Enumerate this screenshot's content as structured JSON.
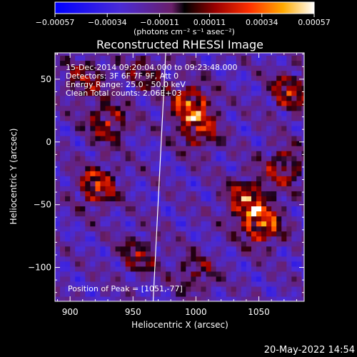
{
  "chart_data": {
    "type": "heatmap",
    "title": "Reconstructed RHESSI Image",
    "xlabel": "Heliocentric X (arcsec)",
    "ylabel": "Heliocentric Y (arcsec)",
    "xlim": [
      888,
      1086
    ],
    "ylim": [
      -127,
      71
    ],
    "x_ticks": [
      900,
      950,
      1000,
      1050
    ],
    "y_ticks": [
      50,
      0,
      -50,
      -100
    ],
    "x_tick_labels": [
      "900",
      "950",
      "1000",
      "1050"
    ],
    "y_tick_labels": [
      "50",
      "0",
      "−50",
      "−100"
    ],
    "colorbar": {
      "range": [
        -0.00057,
        0.00057
      ],
      "ticks": [
        -0.00057,
        -0.00034,
        -0.00011,
        0.00011,
        0.00034,
        0.00057
      ],
      "tick_labels": [
        "−0.00057",
        "−0.00034",
        "−0.00011",
        "0.00011",
        "0.00034",
        "0.00057"
      ],
      "units": "(photons cm⁻² s⁻¹ asec⁻²)"
    },
    "annotations": [
      "15-Dec-2014 09:20:04.000 to 09:23:48.000",
      "Detectors: 3F 6F 7F 9F, Att 0",
      "Energy Range: 25.0 - 50.0 keV",
      "Clean   Total counts: 2.06E+03"
    ],
    "peak_label": "Position of Peak = [1051,-77]",
    "peak": [
      1051,
      -77
    ],
    "limb_line": [
      [
        976,
        71
      ],
      [
        966,
        -127
      ]
    ],
    "hot_spots": [
      {
        "x": 1052,
        "y": -65,
        "amp": 1.0
      },
      {
        "x": 1040,
        "y": -45,
        "amp": 0.85
      },
      {
        "x": 995,
        "y": 30,
        "amp": 0.9
      },
      {
        "x": 1003,
        "y": 10,
        "amp": 0.7
      },
      {
        "x": 922,
        "y": -35,
        "amp": 0.85
      },
      {
        "x": 930,
        "y": 15,
        "amp": 0.7
      },
      {
        "x": 912,
        "y": 50,
        "amp": 0.6
      },
      {
        "x": 1075,
        "y": 40,
        "amp": 0.75
      },
      {
        "x": 1070,
        "y": -20,
        "amp": 0.65
      },
      {
        "x": 955,
        "y": -90,
        "amp": 0.55
      },
      {
        "x": 1000,
        "y": -105,
        "amp": 0.5
      },
      {
        "x": 960,
        "y": 55,
        "amp": 0.45
      }
    ]
  },
  "timestamp": "20-May-2022 14:54"
}
